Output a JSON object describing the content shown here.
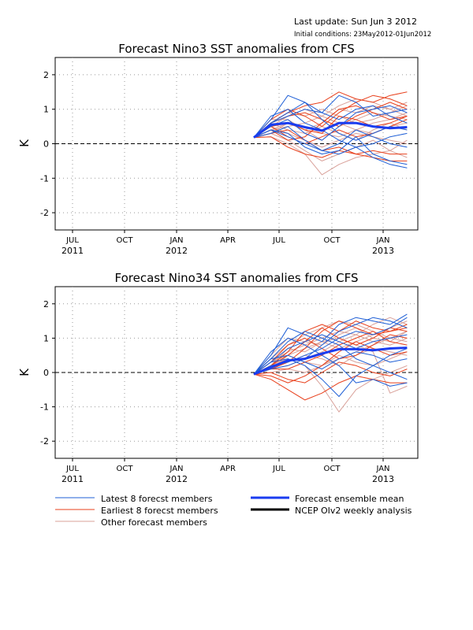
{
  "header": {
    "last_update": "Last update: Sun Jun 3 2012",
    "initial_conditions": "Initial conditions: 23May2012-01Jun2012"
  },
  "legend": {
    "latest": "Latest 8 forecst members",
    "earliest": "Earliest 8 forecst members",
    "other": "Other forecast members",
    "mean": "Forecast ensemble mean",
    "ncep": "NCEP OIv2 weekly analysis"
  },
  "colors": {
    "latest": "#1f5fd6",
    "earliest": "#e8401c",
    "other": "#d9a19a",
    "mean": "#1a3cf0",
    "ncep": "#000000",
    "zero_line": "#000000"
  },
  "chart_data": [
    {
      "type": "line",
      "title": "Forecast Nino3 SST anomalies from CFS",
      "ylabel": "K",
      "ylim": [
        -2.5,
        2.5
      ],
      "yticks": [
        -2,
        -1,
        0,
        1,
        2
      ],
      "xticks": [
        {
          "label": "JUL",
          "year": "2011"
        },
        {
          "label": "OCT",
          "year": ""
        },
        {
          "label": "JAN",
          "year": "2012"
        },
        {
          "label": "APR",
          "year": ""
        },
        {
          "label": "JUL",
          "year": ""
        },
        {
          "label": "OCT",
          "year": ""
        },
        {
          "label": "JAN",
          "year": "2013"
        }
      ],
      "x_months": [
        "2012-05",
        "2012-06",
        "2012-07",
        "2012-08",
        "2012-09",
        "2012-10",
        "2012-11",
        "2012-12",
        "2013-01",
        "2013-02"
      ],
      "grid": true,
      "ensemble_mean": [
        0.18,
        0.55,
        0.6,
        0.48,
        0.38,
        0.6,
        0.6,
        0.5,
        0.45,
        0.48
      ],
      "latest_members": [
        [
          0.18,
          0.7,
          1.4,
          1.2,
          0.9,
          0.7,
          1.0,
          1.1,
          0.8,
          0.6
        ],
        [
          0.18,
          0.4,
          0.2,
          0.0,
          -0.2,
          -0.3,
          -0.1,
          -0.4,
          -0.6,
          -0.7
        ],
        [
          0.18,
          0.6,
          0.9,
          1.2,
          0.7,
          0.3,
          0.1,
          0.3,
          0.5,
          0.4
        ],
        [
          0.18,
          0.5,
          0.7,
          0.3,
          0.1,
          0.5,
          0.9,
          1.0,
          1.1,
          0.9
        ],
        [
          0.18,
          0.8,
          1.0,
          0.6,
          0.4,
          0.1,
          -0.1,
          0.0,
          0.2,
          0.3
        ],
        [
          0.18,
          0.3,
          0.5,
          0.1,
          -0.2,
          0.0,
          0.4,
          0.2,
          0.0,
          -0.1
        ],
        [
          0.18,
          0.6,
          0.8,
          1.0,
          0.9,
          1.4,
          1.2,
          0.8,
          0.9,
          1.0
        ],
        [
          0.18,
          0.4,
          0.3,
          -0.1,
          -0.3,
          -0.2,
          0.2,
          -0.3,
          -0.5,
          -0.6
        ]
      ],
      "earliest_members": [
        [
          0.18,
          0.6,
          0.9,
          1.1,
          1.2,
          1.5,
          1.3,
          1.2,
          1.4,
          1.5
        ],
        [
          0.18,
          0.7,
          1.0,
          0.8,
          0.5,
          0.9,
          1.2,
          1.4,
          1.3,
          1.1
        ],
        [
          0.18,
          0.2,
          -0.1,
          -0.3,
          -0.4,
          -0.2,
          -0.3,
          -0.4,
          -0.5,
          -0.5
        ],
        [
          0.18,
          0.5,
          0.6,
          0.4,
          0.3,
          0.8,
          0.7,
          0.5,
          0.6,
          0.8
        ],
        [
          0.18,
          0.4,
          0.1,
          0.2,
          0.6,
          1.0,
          1.1,
          0.9,
          0.7,
          0.8
        ],
        [
          0.18,
          0.3,
          0.4,
          0.1,
          -0.2,
          -0.1,
          -0.3,
          -0.2,
          -0.3,
          -0.3
        ],
        [
          0.18,
          0.6,
          0.8,
          0.9,
          0.7,
          0.5,
          0.8,
          1.0,
          1.2,
          1.0
        ],
        [
          0.18,
          0.5,
          0.2,
          0.0,
          0.2,
          0.4,
          0.2,
          0.3,
          0.5,
          0.7
        ]
      ],
      "other_members": [
        [
          0.18,
          0.4,
          0.6,
          0.5,
          0.3,
          0.2,
          0.4,
          0.6,
          0.7,
          0.9
        ],
        [
          0.18,
          0.5,
          0.3,
          0.1,
          -0.1,
          0.1,
          0.3,
          0.2,
          0.1,
          0.0
        ],
        [
          0.18,
          0.6,
          0.9,
          0.8,
          1.0,
          0.8,
          0.6,
          0.7,
          0.9,
          1.1
        ],
        [
          0.18,
          0.3,
          0.1,
          -0.2,
          -0.5,
          -0.3,
          -0.1,
          0.1,
          -0.2,
          -0.4
        ],
        [
          0.18,
          0.7,
          0.7,
          0.4,
          0.6,
          1.0,
          0.9,
          1.1,
          1.0,
          0.8
        ],
        [
          0.18,
          0.4,
          0.5,
          0.6,
          0.8,
          0.6,
          0.4,
          0.3,
          0.5,
          0.6
        ],
        [
          0.18,
          0.2,
          0.0,
          -0.3,
          -0.9,
          -0.6,
          -0.4,
          -0.3,
          -0.2,
          0.1
        ],
        [
          0.18,
          0.5,
          0.8,
          1.0,
          0.8,
          1.1,
          1.3,
          1.2,
          1.0,
          1.2
        ],
        [
          0.18,
          0.6,
          0.4,
          0.3,
          0.5,
          0.3,
          0.1,
          0.4,
          0.6,
          0.4
        ],
        [
          0.18,
          0.3,
          0.6,
          0.4,
          0.1,
          0.5,
          0.7,
          0.9,
          0.8,
          0.7
        ]
      ]
    },
    {
      "type": "line",
      "title": "Forecast Nino34 SST anomalies from CFS",
      "ylabel": "K",
      "ylim": [
        -2.5,
        2.5
      ],
      "yticks": [
        -2,
        -1,
        0,
        1,
        2
      ],
      "xticks": [
        {
          "label": "JUL",
          "year": "2011"
        },
        {
          "label": "OCT",
          "year": ""
        },
        {
          "label": "JAN",
          "year": "2012"
        },
        {
          "label": "APR",
          "year": ""
        },
        {
          "label": "JUL",
          "year": ""
        },
        {
          "label": "OCT",
          "year": ""
        },
        {
          "label": "JAN",
          "year": "2013"
        }
      ],
      "x_months": [
        "2012-05",
        "2012-06",
        "2012-07",
        "2012-08",
        "2012-09",
        "2012-10",
        "2012-11",
        "2012-12",
        "2013-01",
        "2013-02"
      ],
      "grid": true,
      "ensemble_mean": [
        -0.05,
        0.15,
        0.35,
        0.4,
        0.55,
        0.68,
        0.68,
        0.65,
        0.7,
        0.72
      ],
      "latest_members": [
        [
          -0.05,
          0.5,
          1.3,
          1.1,
          0.9,
          1.4,
          1.6,
          1.5,
          1.4,
          1.7
        ],
        [
          -0.05,
          0.3,
          0.4,
          0.2,
          -0.2,
          -0.7,
          -0.1,
          0.2,
          0.5,
          0.7
        ],
        [
          -0.05,
          0.4,
          0.9,
          1.2,
          1.0,
          0.8,
          0.4,
          0.2,
          0.0,
          -0.2
        ],
        [
          -0.05,
          0.2,
          0.3,
          0.5,
          0.7,
          1.0,
          1.2,
          1.1,
          1.3,
          1.6
        ],
        [
          -0.05,
          0.6,
          1.0,
          0.8,
          0.5,
          0.2,
          -0.3,
          -0.2,
          -0.4,
          -0.3
        ],
        [
          -0.05,
          0.1,
          0.2,
          0.4,
          0.8,
          1.2,
          1.4,
          1.6,
          1.5,
          1.3
        ],
        [
          -0.05,
          0.3,
          0.7,
          0.9,
          1.1,
          0.9,
          0.7,
          0.9,
          1.0,
          1.1
        ],
        [
          -0.05,
          0.4,
          0.5,
          0.3,
          0.1,
          0.4,
          0.6,
          0.5,
          0.3,
          0.4
        ]
      ],
      "earliest_members": [
        [
          -0.05,
          -0.2,
          -0.5,
          -0.8,
          -0.6,
          -0.3,
          -0.1,
          -0.2,
          -0.3,
          -0.3
        ],
        [
          -0.05,
          0.1,
          0.3,
          0.7,
          1.2,
          1.5,
          1.3,
          1.1,
          1.2,
          1.4
        ],
        [
          -0.05,
          0.2,
          0.5,
          0.9,
          1.3,
          1.0,
          0.8,
          1.0,
          1.3,
          1.2
        ],
        [
          -0.05,
          -0.1,
          -0.3,
          -0.1,
          0.2,
          0.6,
          0.9,
          0.7,
          0.5,
          0.6
        ],
        [
          -0.05,
          0.3,
          0.8,
          1.0,
          0.7,
          0.4,
          0.5,
          0.8,
          1.1,
          1.0
        ],
        [
          -0.05,
          0.0,
          -0.2,
          -0.3,
          0.0,
          0.3,
          0.2,
          0.0,
          -0.1,
          0.1
        ],
        [
          -0.05,
          0.2,
          0.6,
          1.2,
          1.4,
          1.2,
          1.5,
          1.3,
          1.2,
          1.3
        ],
        [
          -0.05,
          0.1,
          0.1,
          0.3,
          0.5,
          0.8,
          1.0,
          1.2,
          0.9,
          0.8
        ]
      ],
      "other_members": [
        [
          -0.05,
          0.3,
          0.6,
          0.8,
          1.0,
          1.2,
          1.1,
          1.4,
          1.6,
          1.4
        ],
        [
          -0.05,
          0.2,
          0.4,
          0.2,
          -0.4,
          -1.15,
          -0.5,
          -0.2,
          0.0,
          0.2
        ],
        [
          -0.05,
          0.4,
          0.8,
          1.1,
          1.3,
          1.5,
          1.4,
          1.2,
          1.0,
          1.2
        ],
        [
          -0.05,
          0.1,
          0.2,
          0.4,
          0.6,
          0.9,
          1.1,
          0.9,
          0.8,
          1.0
        ],
        [
          -0.05,
          0.3,
          0.5,
          0.3,
          0.2,
          0.4,
          0.6,
          0.8,
          1.0,
          0.9
        ],
        [
          -0.05,
          0.5,
          1.0,
          0.9,
          0.8,
          1.1,
          1.3,
          1.0,
          0.9,
          1.2
        ],
        [
          -0.05,
          0.0,
          0.1,
          0.0,
          0.2,
          0.5,
          0.3,
          0.2,
          0.4,
          0.6
        ],
        [
          -0.05,
          0.2,
          0.7,
          0.6,
          0.9,
          0.7,
          0.9,
          1.1,
          1.3,
          1.5
        ],
        [
          -0.05,
          0.4,
          0.3,
          0.5,
          0.4,
          0.2,
          0.5,
          0.7,
          0.6,
          0.5
        ],
        [
          -0.05,
          0.1,
          0.5,
          0.7,
          0.9,
          1.0,
          0.8,
          0.6,
          -0.6,
          -0.4
        ]
      ]
    }
  ]
}
